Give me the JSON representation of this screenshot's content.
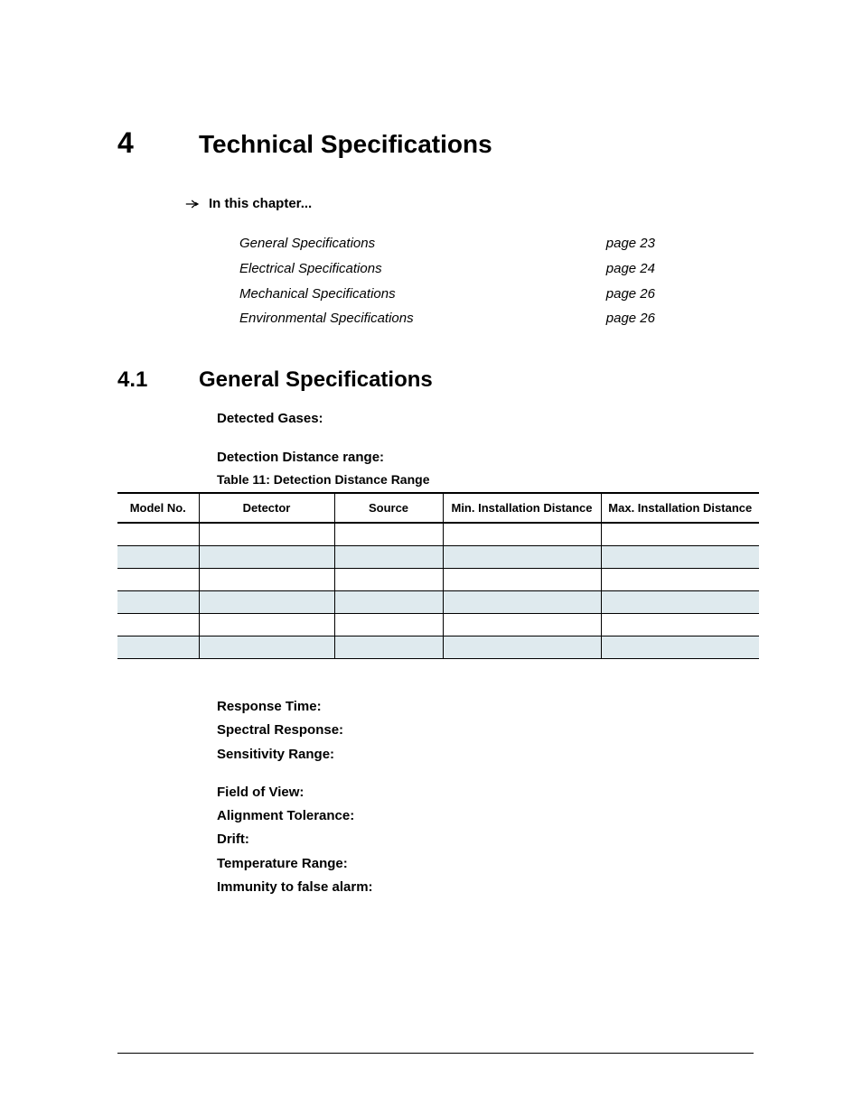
{
  "chapter": {
    "num": "4",
    "title": "Technical Specifications"
  },
  "inChapterLabel": "In this chapter...",
  "toc": [
    {
      "title": "General Specifications",
      "page": "page 23"
    },
    {
      "title": "Electrical Specifications",
      "page": "page 24"
    },
    {
      "title": "Mechanical Specifications",
      "page": "page 26"
    },
    {
      "title": "Environmental Specifications",
      "page": "page 26"
    }
  ],
  "section": {
    "num": "4.1",
    "title": "General Specifications"
  },
  "specLabels": {
    "detectedGases": "Detected Gases:",
    "detectionDistance": "Detection Distance range:"
  },
  "table": {
    "caption": "Table 11: Detection Distance Range",
    "columns": [
      "Model No.",
      "Detector",
      "Source",
      "Min. Installation Distance",
      "Max. Installation Distance"
    ],
    "colWidths": [
      "90px",
      "150px",
      "120px",
      "175px",
      "175px"
    ],
    "rows": [
      [
        "",
        "",
        "",
        "",
        ""
      ],
      [
        "",
        "",
        "",
        "",
        ""
      ],
      [
        "",
        "",
        "",
        "",
        ""
      ],
      [
        "",
        "",
        "",
        "",
        ""
      ],
      [
        "",
        "",
        "",
        "",
        ""
      ],
      [
        "",
        "",
        "",
        "",
        ""
      ]
    ],
    "altRowColor": "#dfeaee",
    "headerBorderColor": "#000000",
    "rowBorderColor": "#000000"
  },
  "specList": [
    "Response Time:",
    "Spectral Response:",
    "Sensitivity Range:",
    "__GAP__",
    "Field of View:",
    "Alignment Tolerance:",
    "Drift:",
    "Temperature Range:",
    "Immunity to false alarm:"
  ],
  "colors": {
    "text": "#000000",
    "background": "#ffffff"
  },
  "fonts": {
    "heading": "Arial, Helvetica, sans-serif",
    "body": "Verdana, Geneva, sans-serif",
    "chapterNumSize": 32,
    "chapterTitleSize": 28,
    "sectionSize": 24,
    "bodySize": 15,
    "tableSize": 13
  }
}
